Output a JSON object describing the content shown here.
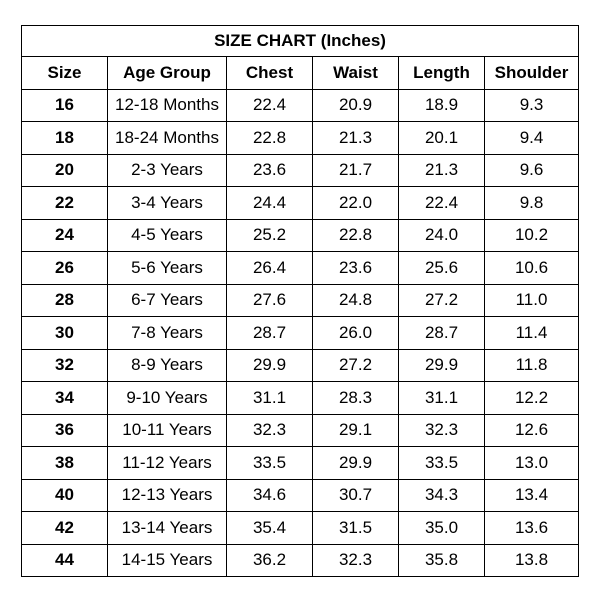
{
  "title": "SIZE CHART (Inches)",
  "columns": [
    "Size",
    "Age Group",
    "Chest",
    "Waist",
    "Length",
    "Shoulder"
  ],
  "rows": [
    [
      "16",
      "12-18 Months",
      "22.4",
      "20.9",
      "18.9",
      "9.3"
    ],
    [
      "18",
      "18-24 Months",
      "22.8",
      "21.3",
      "20.1",
      "9.4"
    ],
    [
      "20",
      "2-3 Years",
      "23.6",
      "21.7",
      "21.3",
      "9.6"
    ],
    [
      "22",
      "3-4 Years",
      "24.4",
      "22.0",
      "22.4",
      "9.8"
    ],
    [
      "24",
      "4-5 Years",
      "25.2",
      "22.8",
      "24.0",
      "10.2"
    ],
    [
      "26",
      "5-6 Years",
      "26.4",
      "23.6",
      "25.6",
      "10.6"
    ],
    [
      "28",
      "6-7 Years",
      "27.6",
      "24.8",
      "27.2",
      "11.0"
    ],
    [
      "30",
      "7-8 Years",
      "28.7",
      "26.0",
      "28.7",
      "11.4"
    ],
    [
      "32",
      "8-9 Years",
      "29.9",
      "27.2",
      "29.9",
      "11.8"
    ],
    [
      "34",
      "9-10 Years",
      "31.1",
      "28.3",
      "31.1",
      "12.2"
    ],
    [
      "36",
      "10-11 Years",
      "32.3",
      "29.1",
      "32.3",
      "12.6"
    ],
    [
      "38",
      "11-12 Years",
      "33.5",
      "29.9",
      "33.5",
      "13.0"
    ],
    [
      "40",
      "12-13 Years",
      "34.6",
      "30.7",
      "34.3",
      "13.4"
    ],
    [
      "42",
      "13-14 Years",
      "35.4",
      "31.5",
      "35.0",
      "13.6"
    ],
    [
      "44",
      "14-15 Years",
      "36.2",
      "32.3",
      "35.8",
      "13.8"
    ]
  ]
}
